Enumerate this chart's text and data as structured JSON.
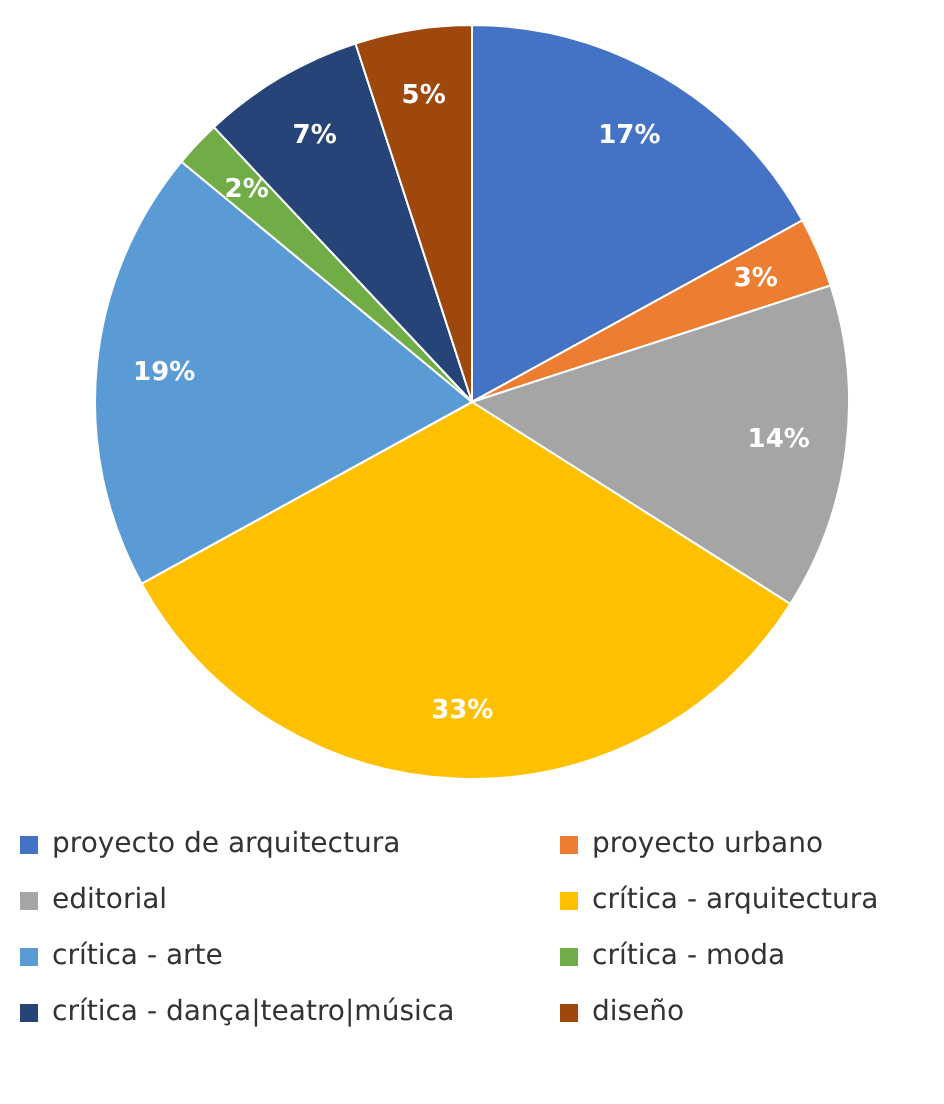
{
  "chart_data": {
    "type": "pie",
    "categories": [
      "proyecto de arquitectura",
      "proyecto urbano",
      "editorial",
      "crítica - arquitectura",
      "crítica - arte",
      "crítica - moda",
      "crítica - dança|teatro|música",
      "diseño"
    ],
    "values": [
      17,
      3,
      14,
      33,
      19,
      2,
      7,
      5
    ],
    "colors": [
      "#4472c4",
      "#ed7d31",
      "#a5a5a5",
      "#ffc000",
      "#5b9bd5",
      "#70ad47",
      "#264478",
      "#9e480e"
    ],
    "value_labels": [
      "17%",
      "3%",
      "14%",
      "33%",
      "19%",
      "2%",
      "7%",
      "5%"
    ],
    "legend": "bottom"
  }
}
